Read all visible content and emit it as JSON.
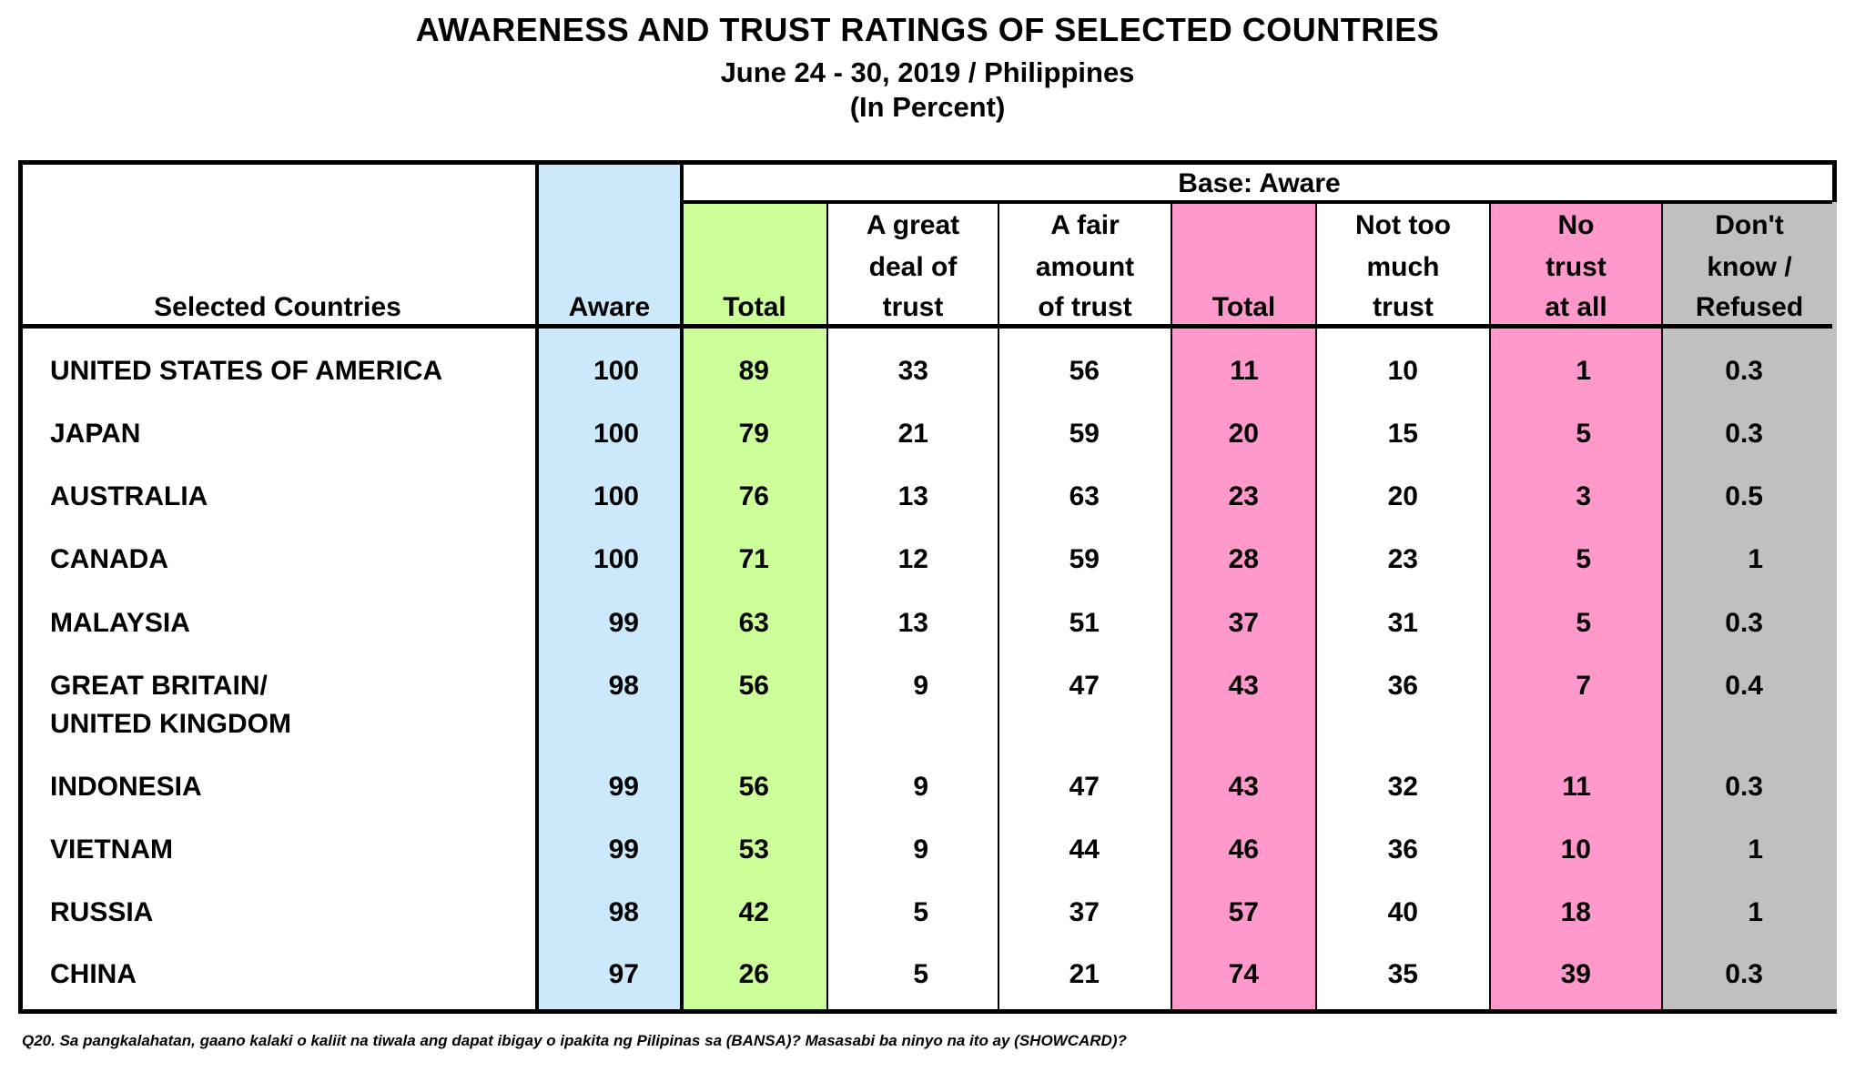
{
  "title": "AWARENESS AND TRUST RATINGS OF SELECTED COUNTRIES",
  "subtitle": "June 24 - 30, 2019 / Philippines",
  "unit": "(In Percent)",
  "table": {
    "group_header": "Base: Aware",
    "columns": [
      {
        "lines": [
          "Selected Countries"
        ]
      },
      {
        "lines": [
          "Aware"
        ],
        "color": "#cce9fb"
      },
      {
        "lines": [
          "Total"
        ],
        "color": "#ccff99"
      },
      {
        "lines": [
          "A great",
          "deal of",
          "trust"
        ]
      },
      {
        "lines": [
          "A fair",
          "amount",
          "of trust"
        ]
      },
      {
        "lines": [
          "Total"
        ],
        "color": "#ff99cc"
      },
      {
        "lines": [
          "Not too",
          "much",
          "trust"
        ]
      },
      {
        "lines": [
          "No",
          "trust",
          "at all"
        ],
        "color": "#ff99cc"
      },
      {
        "lines": [
          "Don't",
          "know /",
          "Refused"
        ],
        "color": "#c0c0c0"
      }
    ],
    "rows": [
      {
        "country": [
          "UNITED STATES OF AMERICA"
        ],
        "values": [
          "100",
          "89",
          "33",
          "56",
          "11",
          "10",
          "1",
          "0.3"
        ]
      },
      {
        "country": [
          "JAPAN"
        ],
        "values": [
          "100",
          "79",
          "21",
          "59",
          "20",
          "15",
          "5",
          "0.3"
        ]
      },
      {
        "country": [
          "AUSTRALIA"
        ],
        "values": [
          "100",
          "76",
          "13",
          "63",
          "23",
          "20",
          "3",
          "0.5"
        ]
      },
      {
        "country": [
          "CANADA"
        ],
        "values": [
          "100",
          "71",
          "12",
          "59",
          "28",
          "23",
          "5",
          "1"
        ]
      },
      {
        "country": [
          "MALAYSIA"
        ],
        "values": [
          "99",
          "63",
          "13",
          "51",
          "37",
          "31",
          "5",
          "0.3"
        ]
      },
      {
        "country": [
          "GREAT BRITAIN/",
          "UNITED KINGDOM"
        ],
        "values": [
          "98",
          "56",
          "9",
          "47",
          "43",
          "36",
          "7",
          "0.4"
        ]
      },
      {
        "country": [
          "INDONESIA"
        ],
        "values": [
          "99",
          "56",
          "9",
          "47",
          "43",
          "32",
          "11",
          "0.3"
        ]
      },
      {
        "country": [
          "VIETNAM"
        ],
        "values": [
          "99",
          "53",
          "9",
          "44",
          "46",
          "36",
          "10",
          "1"
        ]
      },
      {
        "country": [
          "RUSSIA"
        ],
        "values": [
          "98",
          "42",
          "5",
          "37",
          "57",
          "40",
          "18",
          "1"
        ]
      },
      {
        "country": [
          "CHINA"
        ],
        "values": [
          "97",
          "26",
          "5",
          "21",
          "74",
          "35",
          "39",
          "0.3"
        ]
      }
    ]
  },
  "footnote": "Q20. Sa pangkalahatan, gaano kalaki o kaliit na tiwala ang dapat ibigay o ipakita ng Pilipinas sa (BANSA)? Masasabi ba ninyo na ito ay (SHOWCARD)?"
}
